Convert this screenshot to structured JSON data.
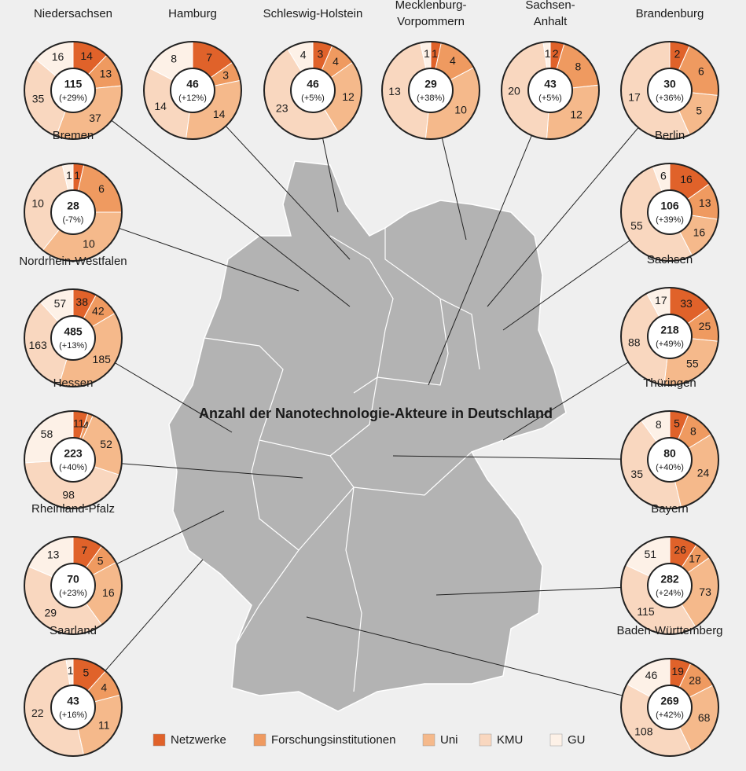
{
  "title": "Anzahl der Nanotechnologie-Akteure in Deutschland",
  "legend": {
    "labels": [
      "Netzwerke",
      "Forschungsinstitutionen",
      "Uni",
      "KMU",
      "GU"
    ],
    "colors": [
      "#e0622a",
      "#ef9a60",
      "#f5b98b",
      "#f9d7bf",
      "#fdf1e7"
    ]
  },
  "chart_data": [
    {
      "type": "pie",
      "title": "Niedersachsen",
      "values": [
        14,
        13,
        37,
        35,
        16
      ],
      "total": 115,
      "change": "(+29%)"
    },
    {
      "type": "pie",
      "title": "Hamburg",
      "values": [
        7,
        3,
        14,
        14,
        8
      ],
      "total": 46,
      "change": "(+12%)"
    },
    {
      "type": "pie",
      "title": "Schleswig-Holstein",
      "values": [
        3,
        4,
        12,
        23,
        4
      ],
      "total": 46,
      "change": "(+5%)"
    },
    {
      "type": "pie",
      "title": "Mecklenburg-\nVorpommern",
      "values": [
        1,
        4,
        10,
        13,
        1
      ],
      "total": 29,
      "change": "(+38%)"
    },
    {
      "type": "pie",
      "title": "Sachsen-\nAnhalt",
      "values": [
        2,
        8,
        12,
        20,
        1
      ],
      "total": 43,
      "change": "(+5%)"
    },
    {
      "type": "pie",
      "title": "Brandenburg",
      "values": [
        2,
        6,
        5,
        17,
        0
      ],
      "total": 30,
      "change": "(+36%)"
    },
    {
      "type": "pie",
      "title": "Bremen",
      "values": [
        1,
        6,
        10,
        10,
        1
      ],
      "total": 28,
      "change": "(-7%)"
    },
    {
      "type": "pie",
      "title": "Berlin",
      "values": [
        16,
        13,
        16,
        55,
        6
      ],
      "total": 106,
      "change": "(+39%)"
    },
    {
      "type": "pie",
      "title": "Nordrhein-Westfalen",
      "values": [
        38,
        42,
        185,
        163,
        57
      ],
      "total": 485,
      "change": "(+13%)"
    },
    {
      "type": "pie",
      "title": "Sachsen",
      "values": [
        33,
        25,
        55,
        88,
        17
      ],
      "total": 218,
      "change": "(+49%)"
    },
    {
      "type": "pie",
      "title": "Hessen",
      "values": [
        11,
        4,
        52,
        98,
        58
      ],
      "total": 223,
      "change": "(+40%)"
    },
    {
      "type": "pie",
      "title": "Thüringen",
      "values": [
        5,
        8,
        24,
        35,
        8
      ],
      "total": 80,
      "change": "(+40%)"
    },
    {
      "type": "pie",
      "title": "Rheinland-Pfalz",
      "values": [
        7,
        5,
        16,
        29,
        13
      ],
      "total": 70,
      "change": "(+23%)"
    },
    {
      "type": "pie",
      "title": "Bayern",
      "values": [
        26,
        17,
        73,
        115,
        51
      ],
      "total": 282,
      "change": "(+24%)"
    },
    {
      "type": "pie",
      "title": "Saarland",
      "values": [
        5,
        4,
        11,
        22,
        1
      ],
      "total": 43,
      "change": "(+16%)"
    },
    {
      "type": "pie",
      "title": "Baden-Württemberg",
      "values": [
        19,
        28,
        68,
        108,
        46
      ],
      "total": 269,
      "change": "(+42%)"
    }
  ]
}
